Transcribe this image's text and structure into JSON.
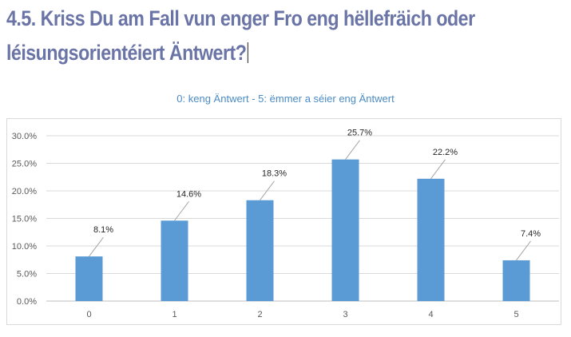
{
  "heading": {
    "line1": "4.5. Kriss Du am Fall vun enger Fro eng hëllefräich oder",
    "line2": "léisungsorientéiert Äntwert?"
  },
  "colors": {
    "heading": "#6a74a6",
    "bar": "#5b9bd5",
    "title": "#4a8bc4"
  },
  "chart_data": {
    "type": "bar",
    "title": "0: keng Äntwert - 5: ëmmer a séier eng Äntwert",
    "categories": [
      "0",
      "1",
      "2",
      "3",
      "4",
      "5"
    ],
    "values": [
      8.1,
      14.6,
      18.3,
      25.7,
      22.2,
      7.4
    ],
    "data_labels": [
      "8.1%",
      "14.6%",
      "18.3%",
      "25.7%",
      "22.2%",
      "7.4%"
    ],
    "y_ticks": [
      "0.0%",
      "5.0%",
      "10.0%",
      "15.0%",
      "20.0%",
      "25.0%",
      "30.0%"
    ],
    "ylim": [
      0,
      30
    ],
    "grid": true,
    "legend": "none"
  }
}
